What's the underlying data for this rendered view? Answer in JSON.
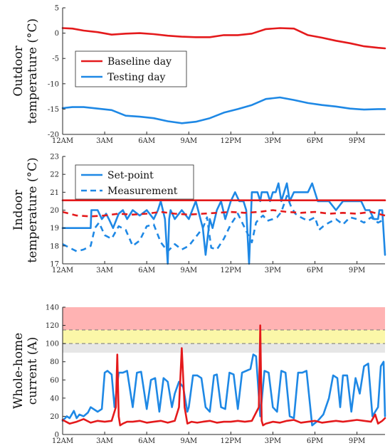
{
  "chart_data": [
    {
      "type": "line",
      "ylabel": [
        "Outdoor",
        "temperature (°C)"
      ],
      "ylim": [
        -20,
        5
      ],
      "yticks": [
        5,
        0,
        -5,
        -10,
        -15,
        -20
      ],
      "xlim": [
        0,
        23
      ],
      "xticks": [
        0,
        3,
        6,
        9,
        12,
        15,
        18,
        21
      ],
      "xtick_labels": [
        "12AM",
        "3AM",
        "6AM",
        "9AM",
        "12PM",
        "3PM",
        "6PM",
        "9PM"
      ],
      "legend": "upper-left",
      "series": [
        {
          "name": "Baseline day",
          "color": "#e41a1c",
          "style": "solid",
          "x": [
            0,
            0.7,
            1.5,
            2.5,
            3.5,
            4.5,
            5.5,
            6.5,
            7.5,
            8.5,
            9.5,
            10.5,
            11.5,
            12.5,
            13.5,
            14.5,
            15.5,
            16.5,
            17.5,
            18.5,
            19.5,
            20.5,
            21.5,
            22.5,
            23
          ],
          "y": [
            1.0,
            0.9,
            0.5,
            0.2,
            -0.3,
            -0.1,
            0.0,
            -0.2,
            -0.5,
            -0.7,
            -0.8,
            -0.8,
            -0.4,
            -0.4,
            -0.1,
            0.8,
            1.0,
            0.9,
            -0.4,
            -0.9,
            -1.5,
            -2.0,
            -2.6,
            -2.9,
            -3.0
          ]
        },
        {
          "name": "Testing day",
          "color": "#1e88e5",
          "style": "solid",
          "x": [
            0,
            0.7,
            1.5,
            2.5,
            3.5,
            4.5,
            5.5,
            6.5,
            7.5,
            8.5,
            9.5,
            10.5,
            11.5,
            12.5,
            13.5,
            14.5,
            15.5,
            16.5,
            17.5,
            18.5,
            19.5,
            20.5,
            21.5,
            22.5,
            23
          ],
          "y": [
            -14.8,
            -14.6,
            -14.6,
            -14.9,
            -15.2,
            -16.3,
            -16.5,
            -16.8,
            -17.4,
            -17.8,
            -17.5,
            -16.8,
            -15.7,
            -15.0,
            -14.2,
            -13.0,
            -12.7,
            -13.2,
            -13.8,
            -14.2,
            -14.5,
            -14.9,
            -15.1,
            -15.0,
            -15.0
          ]
        }
      ]
    },
    {
      "type": "line",
      "ylabel": [
        "Indoor",
        "temperature (°C)"
      ],
      "ylim": [
        17,
        23
      ],
      "yticks": [
        23,
        22,
        21,
        20,
        19,
        18,
        17
      ],
      "xlim": [
        0,
        23
      ],
      "xticks": [
        0,
        3,
        6,
        9,
        12,
        15,
        18,
        21
      ],
      "xtick_labels": [
        "12AM",
        "3AM",
        "6AM",
        "9AM",
        "12PM",
        "3PM",
        "6PM",
        "9PM"
      ],
      "legend": "upper-left",
      "series": [
        {
          "name": "Set-point",
          "color": "#1e88e5",
          "style": "solid",
          "x": [
            0,
            2.0,
            2.05,
            2.5,
            2.8,
            3.1,
            3.3,
            3.6,
            4.0,
            4.3,
            4.6,
            5.0,
            5.5,
            6.0,
            6.5,
            6.8,
            7.0,
            7.3,
            7.5,
            7.6,
            7.7,
            8.0,
            8.5,
            9.0,
            9.5,
            10.0,
            10.2,
            10.5,
            10.7,
            11.0,
            11.3,
            11.6,
            12.0,
            12.3,
            12.6,
            12.9,
            13.1,
            13.3,
            13.5,
            13.7,
            13.9,
            14.1,
            14.2,
            14.3,
            14.4,
            14.6,
            14.8,
            15.0,
            15.2,
            15.4,
            15.6,
            15.8,
            16.0,
            16.2,
            16.5,
            17.0,
            17.5,
            17.8,
            18.0,
            18.2,
            18.5,
            19.0,
            19.5,
            20.0,
            20.5,
            20.8,
            21.0,
            21.3,
            21.6,
            21.9,
            22.2,
            22.5,
            22.6,
            22.8,
            23.0
          ],
          "y": [
            19.0,
            19.0,
            20.0,
            20.0,
            19.5,
            19.8,
            19.5,
            19.0,
            19.8,
            20.0,
            19.5,
            20.0,
            19.7,
            20.0,
            19.5,
            20.0,
            20.5,
            19.5,
            17.0,
            19.5,
            20.0,
            19.5,
            20.0,
            19.5,
            20.5,
            19.0,
            17.5,
            19.5,
            19.0,
            20.0,
            20.5,
            19.5,
            20.5,
            21.0,
            20.5,
            20.5,
            20.0,
            17.0,
            21.0,
            21.0,
            21.0,
            20.5,
            21.0,
            21.0,
            21.0,
            21.0,
            20.5,
            21.0,
            21.0,
            21.5,
            20.5,
            21.0,
            21.5,
            20.5,
            21.0,
            21.0,
            21.0,
            21.5,
            21.0,
            20.5,
            20.5,
            20.5,
            20.0,
            20.5,
            20.5,
            20.5,
            20.5,
            20.5,
            20.0,
            20.0,
            19.5,
            19.5,
            20.0,
            20.0,
            17.5
          ]
        },
        {
          "name": "Measurement",
          "color": "#1e88e5",
          "style": "dashed",
          "x": [
            0,
            0.5,
            1.0,
            1.5,
            2.0,
            2.3,
            2.6,
            3.0,
            3.5,
            4.0,
            4.5,
            5.0,
            5.5,
            6.0,
            6.5,
            7.0,
            7.5,
            8.0,
            8.5,
            9.0,
            9.5,
            10.0,
            10.3,
            10.6,
            11.0,
            11.5,
            12.0,
            12.5,
            13.0,
            13.5,
            13.8,
            14.0,
            14.3,
            14.6,
            15.0,
            15.3,
            15.6,
            16.0,
            16.3,
            16.6,
            17.0,
            17.5,
            18.0,
            18.3,
            18.6,
            19.0,
            19.5,
            20.0,
            20.5,
            21.0,
            21.5,
            22.0,
            22.5,
            23.0
          ],
          "y": [
            18.1,
            17.9,
            17.7,
            17.8,
            18.0,
            19.0,
            19.3,
            18.6,
            18.4,
            19.1,
            18.9,
            18.0,
            18.3,
            19.1,
            19.2,
            18.2,
            17.7,
            18.1,
            17.8,
            18.0,
            18.5,
            19.0,
            19.6,
            17.9,
            17.8,
            18.4,
            19.2,
            19.8,
            19.0,
            18.2,
            19.3,
            19.5,
            19.7,
            19.4,
            19.5,
            19.6,
            19.9,
            20.8,
            20.2,
            19.8,
            19.6,
            19.4,
            19.6,
            18.9,
            19.1,
            19.3,
            19.5,
            19.2,
            19.6,
            19.5,
            19.3,
            19.6,
            19.3,
            19.5
          ]
        },
        {
          "name": "",
          "color": "#e41a1c",
          "style": "solid",
          "x": [
            0,
            23
          ],
          "y": [
            20.55,
            20.55
          ]
        },
        {
          "name": "",
          "color": "#e41a1c",
          "style": "dashed",
          "x": [
            0,
            1,
            2,
            3,
            4,
            5,
            6,
            7,
            8,
            9,
            10,
            11,
            12,
            13,
            14,
            15,
            16,
            17,
            18,
            19,
            20,
            21,
            22,
            23
          ],
          "y": [
            19.9,
            19.7,
            19.65,
            19.7,
            19.8,
            19.75,
            19.8,
            19.9,
            19.8,
            19.75,
            19.8,
            19.85,
            19.9,
            19.85,
            19.9,
            20.0,
            19.9,
            19.85,
            19.9,
            19.8,
            19.85,
            19.8,
            19.9,
            19.7
          ]
        }
      ]
    },
    {
      "type": "line",
      "ylabel": [
        "Whole-home",
        "current (A)"
      ],
      "ylim": [
        0,
        140
      ],
      "yticks": [
        140,
        120,
        100,
        80,
        60,
        40,
        20,
        0
      ],
      "xlim": [
        0,
        23
      ],
      "xticks": [
        0,
        3,
        6,
        9,
        12,
        15,
        18,
        21
      ],
      "xtick_labels": [
        "12AM",
        "3AM",
        "6AM",
        "9AM",
        "12PM",
        "3PM",
        "6PM",
        "9PM"
      ],
      "bands": [
        {
          "y0": 115,
          "y1": 140,
          "color": "#ffb3b3"
        },
        {
          "y0": 100,
          "y1": 115,
          "color": "#fbf7a8"
        },
        {
          "y0": 90,
          "y1": 100,
          "color": "#e6e6e6"
        }
      ],
      "reference_lines": [
        {
          "y": 115,
          "color": "#777777",
          "style": "dashed"
        },
        {
          "y": 100,
          "color": "#777777",
          "style": "dashed"
        }
      ],
      "series": [
        {
          "name": "",
          "color": "#1e88e5",
          "style": "solid",
          "x": [
            0,
            0.3,
            0.5,
            0.8,
            1.0,
            1.2,
            1.5,
            1.8,
            2.0,
            2.5,
            2.8,
            3.0,
            3.2,
            3.5,
            3.7,
            4.0,
            4.3,
            4.6,
            5.0,
            5.3,
            5.6,
            6.0,
            6.3,
            6.6,
            6.9,
            7.2,
            7.5,
            7.8,
            8.0,
            8.3,
            8.6,
            8.9,
            9.0,
            9.3,
            9.6,
            9.9,
            10.2,
            10.5,
            10.8,
            11.0,
            11.3,
            11.6,
            11.9,
            12.2,
            12.5,
            12.8,
            13.1,
            13.4,
            13.6,
            13.8,
            14.1,
            14.4,
            14.7,
            15.0,
            15.3,
            15.6,
            15.9,
            16.2,
            16.5,
            16.8,
            17.1,
            17.4,
            17.8,
            18.2,
            18.6,
            19.0,
            19.3,
            19.6,
            19.8,
            20.0,
            20.3,
            20.6,
            20.9,
            21.2,
            21.5,
            21.8,
            22.1,
            22.3,
            22.5,
            22.7,
            22.9,
            23.0
          ],
          "y": [
            15,
            20,
            18,
            26,
            18,
            22,
            20,
            24,
            30,
            25,
            28,
            68,
            70,
            66,
            30,
            68,
            68,
            70,
            30,
            68,
            69,
            28,
            60,
            62,
            25,
            62,
            58,
            30,
            45,
            58,
            52,
            25,
            30,
            65,
            65,
            62,
            30,
            25,
            65,
            66,
            30,
            28,
            68,
            66,
            28,
            68,
            70,
            72,
            88,
            86,
            20,
            70,
            68,
            30,
            25,
            70,
            68,
            20,
            18,
            68,
            68,
            70,
            10,
            15,
            22,
            40,
            65,
            62,
            30,
            65,
            65,
            25,
            62,
            45,
            75,
            78,
            20,
            25,
            30,
            75,
            80,
            20
          ]
        },
        {
          "name": "",
          "color": "#e41a1c",
          "style": "solid",
          "x": [
            0,
            0.5,
            1.0,
            1.5,
            2.0,
            2.5,
            3.0,
            3.5,
            3.8,
            3.9,
            4.0,
            4.1,
            4.3,
            4.6,
            5.0,
            5.5,
            6.0,
            6.5,
            7.0,
            7.5,
            8.0,
            8.3,
            8.5,
            8.7,
            8.9,
            9.2,
            9.6,
            10.0,
            10.5,
            11.0,
            11.5,
            12.0,
            12.5,
            13.0,
            13.5,
            14.0,
            14.1,
            14.2,
            14.3,
            14.5,
            15.0,
            15.5,
            16.0,
            16.5,
            17.0,
            17.5,
            18.0,
            18.5,
            19.0,
            19.5,
            20.0,
            20.5,
            21.0,
            21.5,
            22.0,
            22.3,
            22.5,
            22.8,
            23.0
          ],
          "y": [
            16,
            12,
            14,
            17,
            13,
            15,
            14,
            15,
            30,
            88,
            20,
            10,
            12,
            14,
            14,
            15,
            13,
            14,
            15,
            13,
            15,
            30,
            95,
            30,
            12,
            14,
            13,
            14,
            15,
            13,
            14,
            14,
            15,
            14,
            15,
            30,
            120,
            15,
            10,
            12,
            14,
            13,
            15,
            16,
            13,
            14,
            15,
            13,
            14,
            15,
            14,
            15,
            16,
            15,
            14,
            22,
            12,
            15,
            18
          ]
        }
      ]
    }
  ],
  "legend1": {
    "items": [
      {
        "label": "Baseline day",
        "color": "#e41a1c",
        "style": "solid"
      },
      {
        "label": "Testing day",
        "color": "#1e88e5",
        "style": "solid"
      }
    ]
  },
  "legend2": {
    "items": [
      {
        "label": "Set-point",
        "color": "#1e88e5",
        "style": "solid"
      },
      {
        "label": "Measurement",
        "color": "#1e88e5",
        "style": "dashed"
      }
    ]
  }
}
